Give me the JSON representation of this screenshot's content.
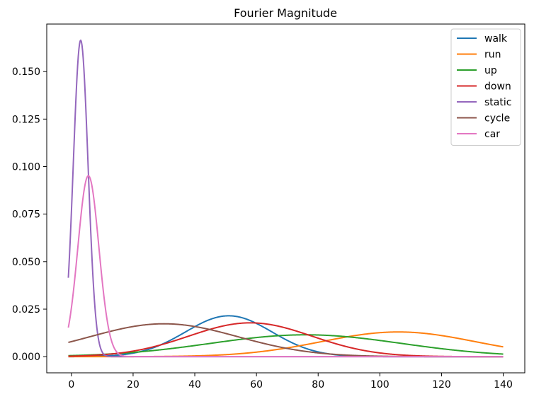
{
  "chart_data": {
    "type": "line",
    "title": "Fourier Magnitude",
    "xlabel": "",
    "ylabel": "",
    "xlim": [
      -8,
      147
    ],
    "ylim": [
      -0.0085,
      0.175
    ],
    "xticks": [
      0,
      20,
      40,
      60,
      80,
      100,
      120,
      140
    ],
    "yticks": [
      0.0,
      0.025,
      0.05,
      0.075,
      0.1,
      0.125,
      0.15
    ],
    "ytick_labels": [
      "0.000",
      "0.025",
      "0.050",
      "0.075",
      "0.100",
      "0.125",
      "0.150"
    ],
    "grid": false,
    "legend_position": "top-right",
    "x_range": [
      -1,
      140
    ],
    "series": [
      {
        "name": "walk",
        "color": "#1f77b4",
        "shape": "gaussian",
        "peak_x": 51,
        "peak_y": 0.0215,
        "sigma": 14
      },
      {
        "name": "run",
        "color": "#ff7f0e",
        "shape": "gaussian",
        "peak_x": 106,
        "peak_y": 0.013,
        "sigma": 25
      },
      {
        "name": "up",
        "color": "#2ca02c",
        "shape": "gaussian",
        "peak_x": 76,
        "peak_y": 0.0115,
        "sigma": 31
      },
      {
        "name": "down",
        "color": "#d62728",
        "shape": "gaussian",
        "peak_x": 58,
        "peak_y": 0.0178,
        "sigma": 20
      },
      {
        "name": "static",
        "color": "#9467bd",
        "shape": "gaussian",
        "peak_x": 3,
        "peak_y": 0.1665,
        "sigma": 2.4
      },
      {
        "name": "cycle",
        "color": "#8c564b",
        "shape": "gaussian",
        "peak_x": 30,
        "peak_y": 0.0173,
        "sigma": 24
      },
      {
        "name": "car",
        "color": "#e377c2",
        "shape": "gaussian",
        "peak_x": 5.5,
        "peak_y": 0.0952,
        "sigma": 3.4
      }
    ]
  }
}
